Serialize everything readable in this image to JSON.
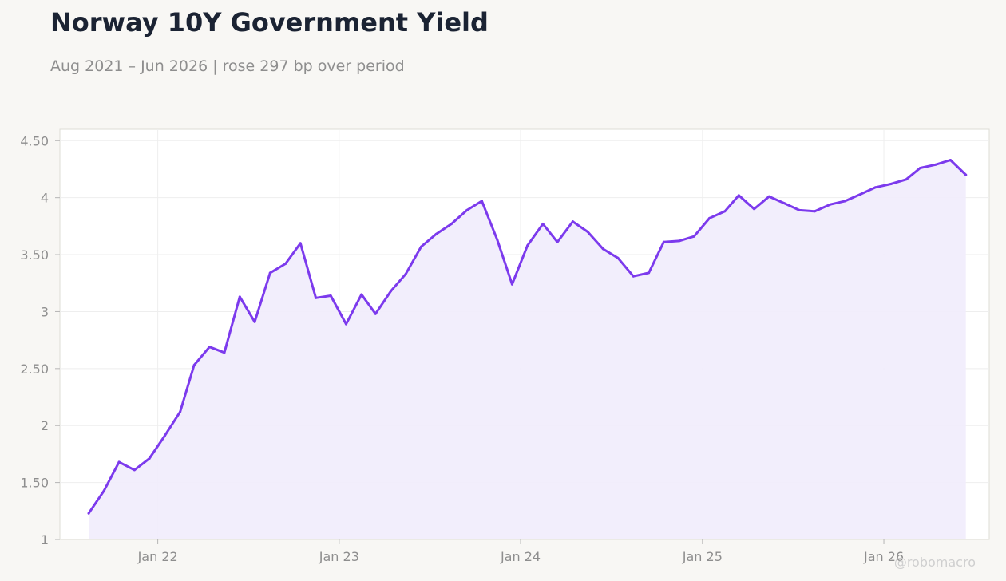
{
  "header": {
    "title": "Norway 10Y Government Yield",
    "subtitle": "Aug 2021 – Jun 2026 | rose 297 bp over period"
  },
  "watermark": "@robomacro",
  "colors": {
    "line": "#7c3aed",
    "area_fill": "#f1ecfc",
    "plot_background": "#ffffff",
    "page_background": "#f8f7f4",
    "grid": "#eeeeee",
    "axis_text": "#8e8e8e",
    "title": "#1b2333"
  },
  "chart_data": {
    "type": "area",
    "title": "Norway 10Y Government Yield",
    "subtitle": "Aug 2021 – Jun 2026 | rose 297 bp over period",
    "xlabel": "",
    "ylabel": "",
    "grid": true,
    "legend": "none",
    "ylim": [
      1,
      4.6
    ],
    "xlim": [
      "2021-06-18",
      "2026-08-01"
    ],
    "y_ticks": [
      {
        "value": 1,
        "label": "1"
      },
      {
        "value": 1.5,
        "label": "1.50"
      },
      {
        "value": 2,
        "label": "2"
      },
      {
        "value": 2.5,
        "label": "2.50"
      },
      {
        "value": 3,
        "label": "3"
      },
      {
        "value": 3.5,
        "label": "3.50"
      },
      {
        "value": 4,
        "label": "4"
      },
      {
        "value": 4.5,
        "label": "4.50"
      }
    ],
    "x_ticks": [
      {
        "date": "2022-01-01",
        "label": "Jan 22"
      },
      {
        "date": "2023-01-01",
        "label": "Jan 23"
      },
      {
        "date": "2024-01-01",
        "label": "Jan 24"
      },
      {
        "date": "2025-01-01",
        "label": "Jan 25"
      },
      {
        "date": "2026-01-01",
        "label": "Jan 26"
      }
    ],
    "series": [
      {
        "x": [
          "2021-08",
          "2021-09",
          "2021-10",
          "2021-11",
          "2021-12",
          "2022-01",
          "2022-02",
          "2022-03",
          "2022-04",
          "2022-05",
          "2022-06",
          "2022-07",
          "2022-08",
          "2022-09",
          "2022-10",
          "2022-11",
          "2022-12",
          "2023-01",
          "2023-02",
          "2023-03",
          "2023-04",
          "2023-05",
          "2023-06",
          "2023-07",
          "2023-08",
          "2023-09",
          "2023-10",
          "2023-11",
          "2023-12",
          "2024-01",
          "2024-02",
          "2024-03",
          "2024-04",
          "2024-05",
          "2024-06",
          "2024-07",
          "2024-08",
          "2024-09",
          "2024-10",
          "2024-11",
          "2024-12",
          "2025-01",
          "2025-02",
          "2025-03",
          "2025-04",
          "2025-05",
          "2025-06",
          "2025-07",
          "2025-08",
          "2025-09",
          "2025-10",
          "2025-11",
          "2025-12",
          "2026-01",
          "2026-02",
          "2026-03",
          "2026-04",
          "2026-05",
          "2026-06"
        ],
        "values": [
          1.23,
          1.43,
          1.68,
          1.61,
          1.71,
          1.91,
          2.12,
          2.53,
          2.69,
          2.64,
          3.13,
          2.91,
          3.34,
          3.42,
          3.6,
          3.12,
          3.14,
          2.89,
          3.15,
          2.98,
          3.18,
          3.33,
          3.57,
          3.68,
          3.77,
          3.89,
          3.97,
          3.63,
          3.24,
          3.58,
          3.77,
          3.61,
          3.79,
          3.7,
          3.55,
          3.47,
          3.31,
          3.34,
          3.61,
          3.62,
          3.66,
          3.82,
          3.88,
          4.02,
          3.9,
          4.01,
          3.95,
          3.89,
          3.88,
          3.94,
          3.97,
          4.03,
          4.09,
          4.12,
          4.16,
          4.26,
          4.29,
          4.33,
          4.2
        ]
      }
    ]
  }
}
